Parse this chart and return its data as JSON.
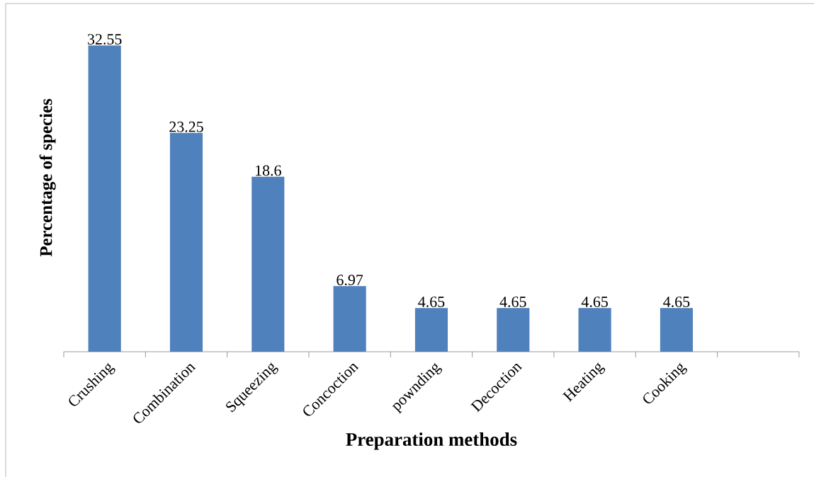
{
  "chart_data": {
    "type": "bar",
    "xlabel": "Preparation methods",
    "ylabel": "Percentage of species",
    "categories": [
      "Crushing",
      "Combination",
      "Squeezing",
      "Concoction",
      "pownding",
      "Decoction",
      "Heating",
      "Cooking",
      null
    ],
    "values": [
      32.55,
      23.25,
      18.6,
      6.97,
      4.65,
      4.65,
      4.65,
      4.65,
      null
    ],
    "color": "#4f81bd",
    "ylim": [
      0,
      37
    ],
    "data_labels": true
  }
}
